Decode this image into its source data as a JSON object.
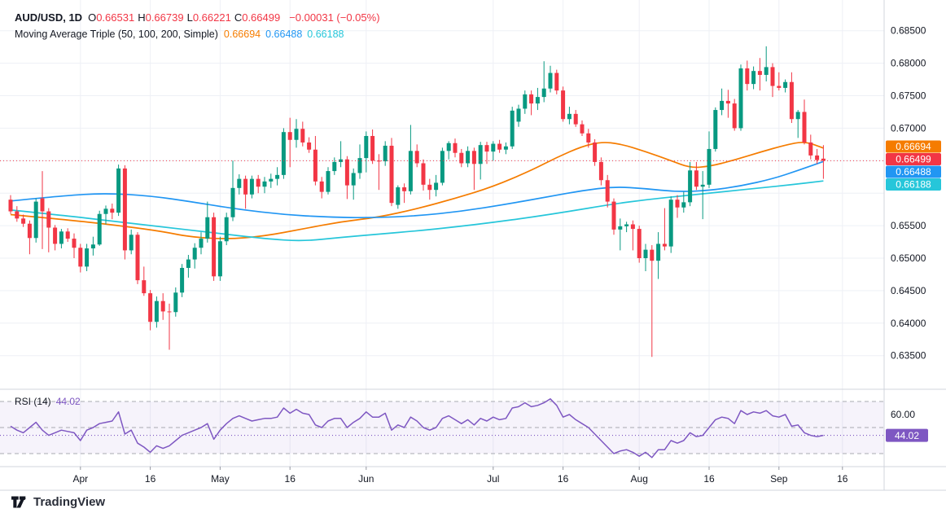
{
  "header": {
    "title": "AUD/USD, 1D",
    "ohlc": [
      {
        "label": "O",
        "value": "0.66531"
      },
      {
        "label": "H",
        "value": "0.66739"
      },
      {
        "label": "L",
        "value": "0.66221"
      },
      {
        "label": "C",
        "value": "0.66499"
      }
    ],
    "change": "−0.00031 (−0.05%)",
    "indicator_label": "Moving Average Triple (50, 100, 200, Simple)",
    "indicator_values": [
      {
        "value": "0.66694",
        "color": "#f57c00"
      },
      {
        "value": "0.66488",
        "color": "#2196f3"
      },
      {
        "value": "0.66188",
        "color": "#26c6da"
      }
    ]
  },
  "rsi_pane": {
    "label": "RSI (14)",
    "value": "44.02",
    "scale_label": "60.00",
    "badge": "44.02",
    "upper_band": 70,
    "middle_band": 50,
    "lower_band": 30,
    "line_color": "#7e57c2"
  },
  "price_axis": {
    "labels": [
      "0.68500",
      "0.68000",
      "0.67500",
      "0.67000",
      "0.65500",
      "0.65000",
      "0.64500",
      "0.64000",
      "0.63500"
    ],
    "grid_min": 0.635,
    "grid_max": 0.685,
    "grid_step": 0.005,
    "badges": [
      {
        "value": "0.66694",
        "color": "#f57c00"
      },
      {
        "value": "0.66499",
        "color": "#f23645"
      },
      {
        "value": "0.66488",
        "color": "#2196f3"
      },
      {
        "value": "0.66188",
        "color": "#26c6da"
      }
    ]
  },
  "time_axis": {
    "ticks": [
      {
        "text": "Apr",
        "i": 11
      },
      {
        "text": "16",
        "i": 22
      },
      {
        "text": "May",
        "i": 33
      },
      {
        "text": "16",
        "i": 44
      },
      {
        "text": "Jun",
        "i": 56
      },
      {
        "text": "Jul",
        "i": 76
      },
      {
        "text": "16",
        "i": 87
      },
      {
        "text": "Aug",
        "i": 99
      },
      {
        "text": "16",
        "i": 110
      },
      {
        "text": "Sep",
        "i": 121
      },
      {
        "text": "16",
        "i": 131
      }
    ]
  },
  "logo": {
    "text": "TradingView"
  },
  "colors": {
    "up": "#089981",
    "down": "#f23645",
    "ma50": "#f57c00",
    "ma100": "#2196f3",
    "ma200": "#26c6da",
    "rsi": "#7e57c2",
    "grid": "#eef0f6",
    "separator": "#d1d4dc",
    "text": "#131722",
    "dashed_level": "#9598a1",
    "last_price": "#f23645"
  },
  "chart_data": {
    "type": "candlestick",
    "title": "AUD/USD, 1D",
    "symbol": "AUD/USD",
    "interval": "1D",
    "last": {
      "open": 0.66531,
      "high": 0.66739,
      "low": 0.66221,
      "close": 0.66499,
      "change": -0.00031,
      "change_pct": -0.05
    },
    "ylim": [
      0.63,
      0.6875
    ],
    "y_ticks": [
      0.685,
      0.68,
      0.675,
      0.67,
      0.655,
      0.65,
      0.645,
      0.64,
      0.635
    ],
    "x_labels": [
      "Apr",
      "16",
      "May",
      "16",
      "Jun",
      "Jul",
      "16",
      "Aug",
      "16",
      "Sep",
      "16"
    ],
    "candles": [
      [
        0.659,
        0.6597,
        0.6568,
        0.6572
      ],
      [
        0.6572,
        0.658,
        0.6556,
        0.6561
      ],
      [
        0.6561,
        0.6567,
        0.6548,
        0.6553
      ],
      [
        0.6553,
        0.6558,
        0.6506,
        0.6531
      ],
      [
        0.6531,
        0.6592,
        0.6524,
        0.6587
      ],
      [
        0.6592,
        0.6634,
        0.6514,
        0.6572
      ],
      [
        0.6572,
        0.6577,
        0.6509,
        0.6547
      ],
      [
        0.6547,
        0.6551,
        0.6512,
        0.6522
      ],
      [
        0.6522,
        0.6545,
        0.6515,
        0.6541
      ],
      [
        0.6541,
        0.6546,
        0.6525,
        0.653
      ],
      [
        0.653,
        0.6538,
        0.65,
        0.6516
      ],
      [
        0.6516,
        0.6522,
        0.6478,
        0.6487
      ],
      [
        0.6487,
        0.6522,
        0.648,
        0.6515
      ],
      [
        0.6515,
        0.6533,
        0.6504,
        0.6521
      ],
      [
        0.6521,
        0.6573,
        0.6519,
        0.6568
      ],
      [
        0.6568,
        0.6581,
        0.6552,
        0.6576
      ],
      [
        0.6576,
        0.6584,
        0.656,
        0.657
      ],
      [
        0.657,
        0.6644,
        0.6565,
        0.6638
      ],
      [
        0.6638,
        0.6643,
        0.6498,
        0.6512
      ],
      [
        0.6512,
        0.6544,
        0.6506,
        0.6536
      ],
      [
        0.6536,
        0.654,
        0.646,
        0.6466
      ],
      [
        0.6466,
        0.6487,
        0.6442,
        0.6446
      ],
      [
        0.6446,
        0.6451,
        0.6389,
        0.6402
      ],
      [
        0.6402,
        0.6441,
        0.6393,
        0.6434
      ],
      [
        0.6434,
        0.6446,
        0.6405,
        0.6418
      ],
      [
        0.6418,
        0.643,
        0.6359,
        0.6417
      ],
      [
        0.6417,
        0.6455,
        0.641,
        0.6447
      ],
      [
        0.6447,
        0.6491,
        0.644,
        0.6485
      ],
      [
        0.6485,
        0.6505,
        0.647,
        0.6498
      ],
      [
        0.6498,
        0.6523,
        0.6484,
        0.6516
      ],
      [
        0.6516,
        0.654,
        0.6506,
        0.653
      ],
      [
        0.653,
        0.6587,
        0.6524,
        0.6563
      ],
      [
        0.6563,
        0.657,
        0.6465,
        0.6472
      ],
      [
        0.6472,
        0.6533,
        0.6465,
        0.6526
      ],
      [
        0.6526,
        0.657,
        0.652,
        0.6563
      ],
      [
        0.6563,
        0.665,
        0.6557,
        0.6608
      ],
      [
        0.6608,
        0.6629,
        0.6598,
        0.6622
      ],
      [
        0.6622,
        0.6627,
        0.6576,
        0.6598
      ],
      [
        0.6598,
        0.6627,
        0.6592,
        0.6622
      ],
      [
        0.6622,
        0.6628,
        0.66,
        0.661
      ],
      [
        0.661,
        0.6625,
        0.66,
        0.6618
      ],
      [
        0.6618,
        0.663,
        0.6608,
        0.6622
      ],
      [
        0.6622,
        0.664,
        0.6612,
        0.6628
      ],
      [
        0.6628,
        0.67,
        0.6622,
        0.6694
      ],
      [
        0.6694,
        0.6716,
        0.664,
        0.6682
      ],
      [
        0.6682,
        0.6714,
        0.667,
        0.6699
      ],
      [
        0.6699,
        0.671,
        0.6672,
        0.6678
      ],
      [
        0.6678,
        0.6686,
        0.6662,
        0.6667
      ],
      [
        0.6667,
        0.6688,
        0.6612,
        0.6618
      ],
      [
        0.6618,
        0.6625,
        0.6592,
        0.6602
      ],
      [
        0.6602,
        0.664,
        0.6598,
        0.6634
      ],
      [
        0.6634,
        0.6655,
        0.6628,
        0.6648
      ],
      [
        0.6648,
        0.668,
        0.664,
        0.6652
      ],
      [
        0.6652,
        0.6657,
        0.6591,
        0.6612
      ],
      [
        0.6612,
        0.6638,
        0.659,
        0.6631
      ],
      [
        0.6631,
        0.6675,
        0.6622,
        0.6654
      ],
      [
        0.6654,
        0.6695,
        0.6632,
        0.6688
      ],
      [
        0.6688,
        0.6698,
        0.6645,
        0.665
      ],
      [
        0.665,
        0.666,
        0.6605,
        0.6649
      ],
      [
        0.6649,
        0.668,
        0.6642,
        0.6673
      ],
      [
        0.6673,
        0.6685,
        0.658,
        0.6585
      ],
      [
        0.6582,
        0.6612,
        0.6576,
        0.6609
      ],
      [
        0.6609,
        0.6615,
        0.6585,
        0.6603
      ],
      [
        0.6603,
        0.6705,
        0.6598,
        0.6665
      ],
      [
        0.6665,
        0.6675,
        0.664,
        0.6646
      ],
      [
        0.6646,
        0.6652,
        0.6604,
        0.6613
      ],
      [
        0.6613,
        0.6622,
        0.659,
        0.6605
      ],
      [
        0.6605,
        0.6628,
        0.6595,
        0.6616
      ],
      [
        0.6616,
        0.667,
        0.6612,
        0.6665
      ],
      [
        0.6665,
        0.668,
        0.6652,
        0.6677
      ],
      [
        0.6677,
        0.6684,
        0.6655,
        0.6662
      ],
      [
        0.6662,
        0.6668,
        0.664,
        0.6646
      ],
      [
        0.6646,
        0.6672,
        0.664,
        0.6665
      ],
      [
        0.6665,
        0.667,
        0.6605,
        0.6645
      ],
      [
        0.6645,
        0.6679,
        0.6621,
        0.6674
      ],
      [
        0.6674,
        0.6679,
        0.6645,
        0.6664
      ],
      [
        0.6664,
        0.668,
        0.665,
        0.6676
      ],
      [
        0.6676,
        0.6682,
        0.6662,
        0.6667
      ],
      [
        0.6667,
        0.6678,
        0.666,
        0.6672
      ],
      [
        0.6672,
        0.6733,
        0.6668,
        0.6727
      ],
      [
        0.671,
        0.6736,
        0.6702,
        0.673
      ],
      [
        0.673,
        0.6758,
        0.6722,
        0.6752
      ],
      [
        0.6752,
        0.6758,
        0.672,
        0.6738
      ],
      [
        0.6738,
        0.6762,
        0.6728,
        0.6748
      ],
      [
        0.6748,
        0.6803,
        0.674,
        0.6761
      ],
      [
        0.6761,
        0.6796,
        0.6755,
        0.6785
      ],
      [
        0.6785,
        0.679,
        0.6752,
        0.6758
      ],
      [
        0.6758,
        0.6764,
        0.671,
        0.6714
      ],
      [
        0.6714,
        0.6733,
        0.6706,
        0.6722
      ],
      [
        0.6722,
        0.6728,
        0.6702,
        0.6706
      ],
      [
        0.6706,
        0.6712,
        0.6688,
        0.6692
      ],
      [
        0.6692,
        0.6699,
        0.667,
        0.6678
      ],
      [
        0.6678,
        0.6683,
        0.6642,
        0.6648
      ],
      [
        0.6648,
        0.6655,
        0.6612,
        0.662
      ],
      [
        0.662,
        0.6628,
        0.6578,
        0.6587
      ],
      [
        0.6587,
        0.6592,
        0.6536,
        0.6544
      ],
      [
        0.6544,
        0.6561,
        0.6512,
        0.6549
      ],
      [
        0.6549,
        0.6556,
        0.654,
        0.6552
      ],
      [
        0.6552,
        0.6558,
        0.6512,
        0.6545
      ],
      [
        0.6545,
        0.655,
        0.6493,
        0.65
      ],
      [
        0.65,
        0.6522,
        0.648,
        0.6513
      ],
      [
        0.6513,
        0.652,
        0.6348,
        0.6496
      ],
      [
        0.6496,
        0.654,
        0.6468,
        0.6522
      ],
      [
        0.6522,
        0.6577,
        0.6512,
        0.6518
      ],
      [
        0.6518,
        0.6595,
        0.6508,
        0.659
      ],
      [
        0.659,
        0.6597,
        0.6562,
        0.6578
      ],
      [
        0.6578,
        0.6602,
        0.657,
        0.6586
      ],
      [
        0.6586,
        0.6648,
        0.658,
        0.6635
      ],
      [
        0.6635,
        0.6648,
        0.6605,
        0.661
      ],
      [
        0.661,
        0.6634,
        0.656,
        0.6613
      ],
      [
        0.6613,
        0.6695,
        0.6608,
        0.6668
      ],
      [
        0.6668,
        0.6732,
        0.6664,
        0.6728
      ],
      [
        0.6728,
        0.6761,
        0.672,
        0.6742
      ],
      [
        0.6742,
        0.6759,
        0.6716,
        0.6738
      ],
      [
        0.6738,
        0.6745,
        0.6696,
        0.67
      ],
      [
        0.67,
        0.6798,
        0.6696,
        0.6792
      ],
      [
        0.6792,
        0.6804,
        0.6758,
        0.6768
      ],
      [
        0.6768,
        0.6795,
        0.676,
        0.6788
      ],
      [
        0.6788,
        0.6808,
        0.6758,
        0.6782
      ],
      [
        0.6782,
        0.6826,
        0.6772,
        0.6794
      ],
      [
        0.6794,
        0.68,
        0.6748,
        0.6765
      ],
      [
        0.6765,
        0.6786,
        0.6758,
        0.6762
      ],
      [
        0.6762,
        0.6775,
        0.6755,
        0.6771
      ],
      [
        0.6771,
        0.6786,
        0.6708,
        0.6714
      ],
      [
        0.6714,
        0.6728,
        0.6685,
        0.6725
      ],
      [
        0.6725,
        0.6744,
        0.6675,
        0.6678
      ],
      [
        0.6678,
        0.669,
        0.6652,
        0.6658
      ],
      [
        0.6658,
        0.6668,
        0.6645,
        0.6651
      ],
      [
        0.66531,
        0.66739,
        0.66221,
        0.66499
      ]
    ],
    "moving_averages": [
      {
        "name": "SMA 50",
        "color": "#f57c00",
        "value": 0.66694,
        "points": [
          [
            0,
            0.6567
          ],
          [
            10,
            0.6558
          ],
          [
            18,
            0.6549
          ],
          [
            24,
            0.6541
          ],
          [
            28,
            0.6533
          ],
          [
            34,
            0.6529
          ],
          [
            40,
            0.6534
          ],
          [
            46,
            0.6545
          ],
          [
            52,
            0.6556
          ],
          [
            58,
            0.6563
          ],
          [
            64,
            0.6576
          ],
          [
            70,
            0.6592
          ],
          [
            76,
            0.661
          ],
          [
            82,
            0.6635
          ],
          [
            86,
            0.6655
          ],
          [
            90,
            0.6672
          ],
          [
            93,
            0.6679
          ],
          [
            96,
            0.6676
          ],
          [
            100,
            0.6664
          ],
          [
            104,
            0.665
          ],
          [
            107,
            0.6639
          ],
          [
            110,
            0.6641
          ],
          [
            114,
            0.6651
          ],
          [
            118,
            0.6663
          ],
          [
            122,
            0.6674
          ],
          [
            125,
            0.668
          ],
          [
            128,
            0.66694
          ]
        ]
      },
      {
        "name": "SMA 100",
        "color": "#2196f3",
        "value": 0.66488,
        "points": [
          [
            0,
            0.6588
          ],
          [
            8,
            0.6596
          ],
          [
            15,
            0.66
          ],
          [
            22,
            0.6596
          ],
          [
            29,
            0.6586
          ],
          [
            36,
            0.6575
          ],
          [
            43,
            0.6567
          ],
          [
            50,
            0.6563
          ],
          [
            57,
            0.6562
          ],
          [
            64,
            0.6565
          ],
          [
            71,
            0.6572
          ],
          [
            78,
            0.6583
          ],
          [
            85,
            0.6595
          ],
          [
            90,
            0.6604
          ],
          [
            95,
            0.661
          ],
          [
            100,
            0.6607
          ],
          [
            105,
            0.6602
          ],
          [
            110,
            0.6604
          ],
          [
            115,
            0.6611
          ],
          [
            120,
            0.6622
          ],
          [
            124,
            0.6635
          ],
          [
            128,
            0.66488
          ]
        ]
      },
      {
        "name": "SMA 200",
        "color": "#26c6da",
        "value": 0.66188,
        "points": [
          [
            0,
            0.6574
          ],
          [
            8,
            0.6566
          ],
          [
            16,
            0.6557
          ],
          [
            24,
            0.6548
          ],
          [
            32,
            0.6539
          ],
          [
            40,
            0.653
          ],
          [
            46,
            0.6526
          ],
          [
            52,
            0.6532
          ],
          [
            58,
            0.6537
          ],
          [
            64,
            0.6542
          ],
          [
            70,
            0.6548
          ],
          [
            76,
            0.6555
          ],
          [
            82,
            0.6563
          ],
          [
            88,
            0.6572
          ],
          [
            94,
            0.6582
          ],
          [
            100,
            0.659
          ],
          [
            106,
            0.6596
          ],
          [
            112,
            0.6602
          ],
          [
            118,
            0.6608
          ],
          [
            123,
            0.6613
          ],
          [
            128,
            0.66188
          ]
        ]
      }
    ],
    "rsi": {
      "name": "RSI (14)",
      "last": 44.02,
      "levels": [
        70,
        50,
        30
      ],
      "scale_ticks": [
        60,
        40
      ],
      "series": [
        51,
        48,
        46,
        50,
        54,
        48,
        44,
        46,
        48,
        47,
        46,
        40,
        48,
        50,
        53,
        54,
        55,
        62,
        45,
        48,
        38,
        35,
        31,
        36,
        34,
        36,
        40,
        44,
        46,
        48,
        50,
        53,
        41,
        48,
        53,
        57,
        59,
        57,
        55,
        56,
        57,
        57,
        58,
        65,
        61,
        64,
        61,
        60,
        52,
        50,
        55,
        57,
        57,
        50,
        54,
        57,
        62,
        58,
        58,
        61,
        48,
        52,
        50,
        58,
        55,
        50,
        48,
        50,
        57,
        59,
        56,
        53,
        56,
        52,
        57,
        55,
        58,
        56,
        57,
        65,
        66,
        69,
        66,
        67,
        69,
        72,
        67,
        58,
        60,
        56,
        53,
        50,
        45,
        40,
        35,
        30,
        32,
        33,
        31,
        28,
        31,
        27,
        33,
        33,
        40,
        38,
        40,
        46,
        43,
        44,
        50,
        56,
        58,
        57,
        53,
        63,
        60,
        62,
        61,
        63,
        59,
        58,
        60,
        51,
        52,
        46,
        44,
        43,
        44.02
      ]
    },
    "last_price_line": 0.66499,
    "grid": true,
    "legend_position": "top-left"
  }
}
